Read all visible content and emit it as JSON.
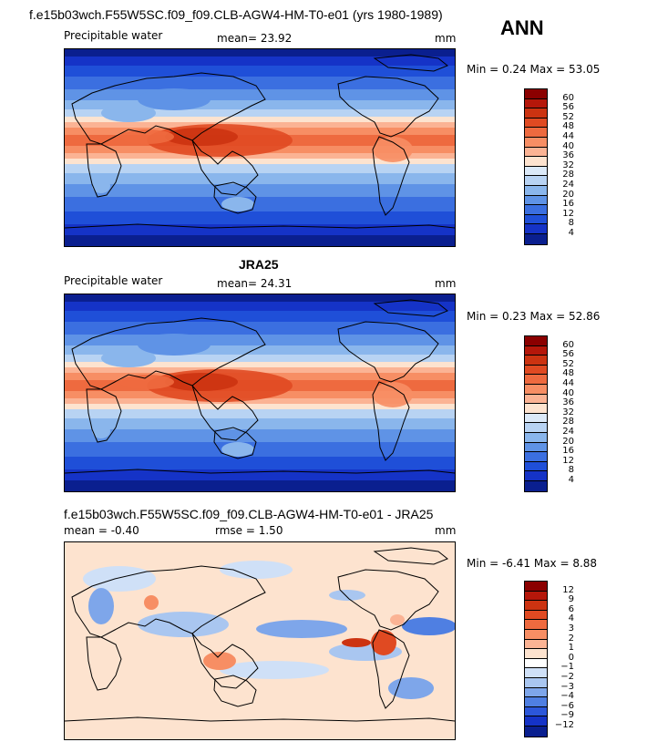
{
  "header": {
    "title": "f.e15b03wch.F55W5SC.f09_f09.CLB-AGW4-HM-T0-e01 (yrs 1980-1989)",
    "season": "ANN"
  },
  "panels": [
    {
      "id": "model",
      "heading": "",
      "left_label": "Precipitable water",
      "mid_label": "mean=   23.92",
      "right_label": "mm",
      "stats": "Min =    0.24  Max =   53.05",
      "colorbar": {
        "levels": [
          "60",
          "56",
          "52",
          "48",
          "44",
          "40",
          "36",
          "32",
          "28",
          "24",
          "20",
          "16",
          "12",
          "8",
          "4"
        ],
        "colors": [
          "#8b0000",
          "#b5170a",
          "#cc3311",
          "#e04a22",
          "#ee6a3f",
          "#f78e64",
          "#fbb394",
          "#fde3cf",
          "#dbe9f8",
          "#b8d3f3",
          "#8ab6ec",
          "#5f93e6",
          "#3b6fe0",
          "#1f4fd8",
          "#1533c7",
          "#0a1f8f"
        ]
      },
      "palette": "precip"
    },
    {
      "id": "obs",
      "heading": "JRA25",
      "left_label": "Precipitable water",
      "mid_label": "mean=   24.31",
      "right_label": "mm",
      "stats": "Min =    0.23  Max =   52.86",
      "colorbar": {
        "levels": [
          "60",
          "56",
          "52",
          "48",
          "44",
          "40",
          "36",
          "32",
          "28",
          "24",
          "20",
          "16",
          "12",
          "8",
          "4"
        ],
        "colors": [
          "#8b0000",
          "#b5170a",
          "#cc3311",
          "#e04a22",
          "#ee6a3f",
          "#f78e64",
          "#fbb394",
          "#fde3cf",
          "#dbe9f8",
          "#b8d3f3",
          "#8ab6ec",
          "#5f93e6",
          "#3b6fe0",
          "#1f4fd8",
          "#1533c7",
          "#0a1f8f"
        ]
      },
      "palette": "precip"
    },
    {
      "id": "diff",
      "heading": "f.e15b03wch.F55W5SC.f09_f09.CLB-AGW4-HM-T0-e01 - JRA25",
      "left_label": "mean =   -0.40",
      "mid_label": "rmse =    1.50",
      "right_label": "mm",
      "stats": "Min =   -6.41  Max =    8.88",
      "colorbar": {
        "levels": [
          "12",
          "9",
          "6",
          "4",
          "3",
          "2",
          "1",
          "0",
          "−1",
          "−2",
          "−3",
          "−4",
          "−6",
          "−9",
          "−12"
        ],
        "colors": [
          "#8b0000",
          "#b5170a",
          "#cc3311",
          "#e04a22",
          "#ee6a3f",
          "#f78e64",
          "#fbb394",
          "#fde3cf",
          "#ffffff",
          "#cfe0f7",
          "#a9c6f0",
          "#7ea6ea",
          "#4f7fe2",
          "#2c57da",
          "#1533c7",
          "#0a1f8f"
        ]
      },
      "palette": "diff"
    }
  ]
}
